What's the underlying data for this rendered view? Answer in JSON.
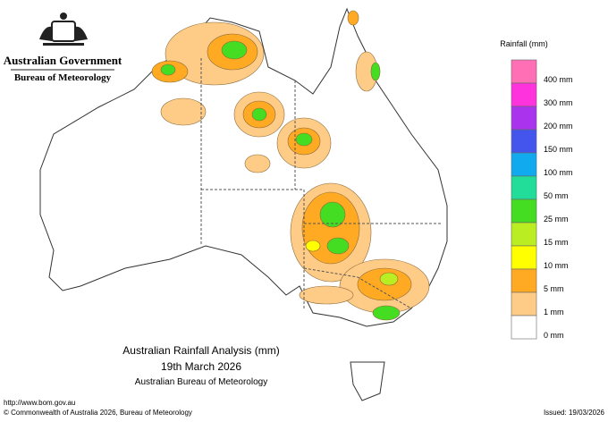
{
  "header": {
    "government": "Australian Government",
    "bureau": "Bureau of Meteorology"
  },
  "legend": {
    "title": "Rainfall (mm)",
    "items": [
      {
        "label": "400 mm",
        "color": "#ff6fb5"
      },
      {
        "label": "300 mm",
        "color": "#ff33dd"
      },
      {
        "label": "200 mm",
        "color": "#aa33ee"
      },
      {
        "label": "150 mm",
        "color": "#4455ee"
      },
      {
        "label": "100 mm",
        "color": "#11aaee"
      },
      {
        "label": "50 mm",
        "color": "#22dd99"
      },
      {
        "label": "25 mm",
        "color": "#44dd22"
      },
      {
        "label": "15 mm",
        "color": "#bbee22"
      },
      {
        "label": "10 mm",
        "color": "#ffff00"
      },
      {
        "label": "5 mm",
        "color": "#ffaa22"
      },
      {
        "label": "1 mm",
        "color": "#ffcc88"
      },
      {
        "label": "0 mm",
        "color": "#ffffff"
      }
    ]
  },
  "map_title": [
    "Australian Rainfall Analysis (mm)",
    "19th March 2026",
    "Australian Bureau of Meteorology"
  ],
  "footer": {
    "url": "http://www.bom.gov.au",
    "copyright": "© Commonwealth of Australia 2026, Bureau of Meteorology",
    "issued": "Issued: 19/03/2026"
  }
}
